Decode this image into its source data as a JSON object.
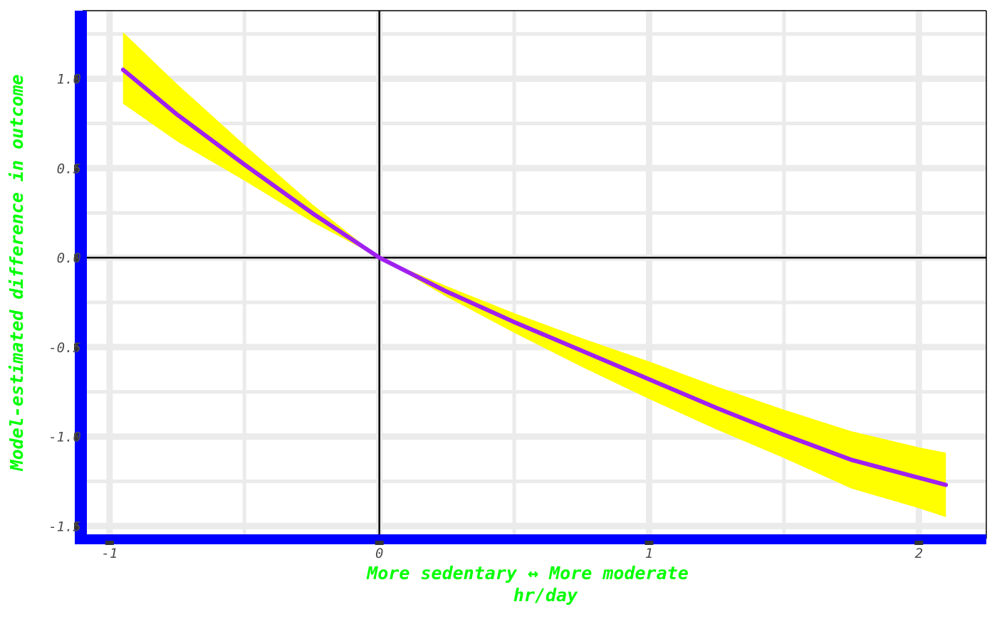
{
  "chart_data": {
    "type": "line",
    "title": "",
    "xlabel": "More sedentary ↔ More moderate",
    "xlabel_line2": "hr/day",
    "ylabel": "Model-estimated difference in outcome",
    "xlim": [
      -1.1,
      2.25
    ],
    "ylim": [
      -1.57,
      1.38
    ],
    "x_ticks": [
      -1,
      0,
      1,
      2
    ],
    "x_tick_labels": [
      "-1",
      "0",
      "1",
      "2"
    ],
    "y_ticks": [
      1.0,
      0.5,
      0.0,
      -0.5,
      -1.0,
      -1.5
    ],
    "y_tick_labels": [
      "1.0",
      "0.5",
      "0.0",
      "-0.5",
      "-1.0",
      "-1.5"
    ],
    "grid": true,
    "reference_lines": {
      "x": 0,
      "y": 0
    },
    "series": [
      {
        "x": [
          -0.95,
          -0.75,
          -0.5,
          -0.25,
          0,
          0.25,
          0.5,
          0.75,
          1.0,
          1.25,
          1.5,
          1.75,
          2.0,
          2.1
        ],
        "y": [
          1.05,
          0.8,
          0.52,
          0.25,
          0.0,
          -0.19,
          -0.36,
          -0.52,
          -0.68,
          -0.84,
          -0.99,
          -1.13,
          -1.23,
          -1.27
        ],
        "lower": [
          0.86,
          0.65,
          0.43,
          0.2,
          0.0,
          -0.22,
          -0.42,
          -0.61,
          -0.79,
          -0.96,
          -1.12,
          -1.29,
          -1.4,
          -1.45
        ],
        "upper": [
          1.26,
          0.97,
          0.63,
          0.3,
          0.0,
          -0.16,
          -0.31,
          -0.45,
          -0.58,
          -0.72,
          -0.85,
          -0.97,
          -1.06,
          -1.09
        ]
      }
    ],
    "colors": {
      "line": "#a020f0",
      "band": "#ffff00",
      "grid": "#ebebeb",
      "axis_line": "#0000ff",
      "reference_line": "#000000",
      "axis_title": "#00ff00",
      "tick_label": "#4d4d4d",
      "tick_mark": "#333333"
    }
  }
}
